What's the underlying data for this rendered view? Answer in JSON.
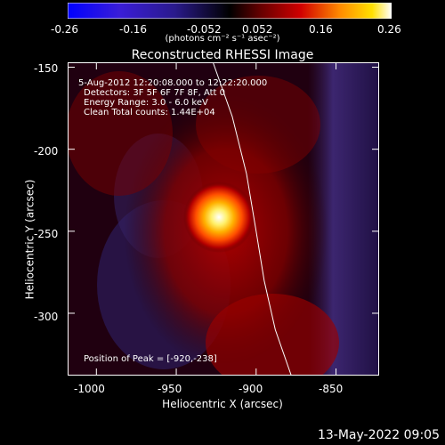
{
  "colorbar": {
    "tick_labels": [
      "-0.26",
      "-0.16",
      "-0.052",
      "0.052",
      "0.16",
      "0.26"
    ],
    "units_label": "(photons cm⁻² s⁻¹ asec⁻²)"
  },
  "plot": {
    "title": "Reconstructed RHESSI Image",
    "annotations": [
      "5-Aug-2012 12:20:08.000 to 12:22:20.000",
      "Detectors: 3F 5F 6F 7F 8F, Att 0",
      "Energy Range: 3.0 - 6.0 keV",
      "Clean     Total counts: 1.44E+04"
    ],
    "peak_label": "Position of Peak = [-920,-238]",
    "footer": "13-May-2022 09:05"
  },
  "chart_data": {
    "type": "heatmap",
    "title": "Reconstructed RHESSI Image",
    "xlabel": "Heliocentric X (arcsec)",
    "ylabel": "Heliocentric Y (arcsec)",
    "xlim": [
      -1018,
      -823
    ],
    "ylim": [
      -338,
      -147
    ],
    "x_ticks": [
      -1000,
      -950,
      -900,
      -850
    ],
    "y_ticks": [
      -300,
      -250,
      -200,
      -150
    ],
    "x_tick_labels": [
      "-1000",
      "-950",
      "-900",
      "-850"
    ],
    "y_tick_labels": [
      "-300",
      "-250",
      "-200",
      "-150"
    ],
    "colorbar_range": [
      -0.26,
      0.26
    ],
    "peak": {
      "x": -920,
      "y": -238
    },
    "limb_curve": [
      {
        "x": -927,
        "y": -147
      },
      {
        "x": -915,
        "y": -180
      },
      {
        "x": -906,
        "y": -215
      },
      {
        "x": -900,
        "y": -250
      },
      {
        "x": -895,
        "y": -280
      },
      {
        "x": -888,
        "y": -310
      },
      {
        "x": -878,
        "y": -338
      }
    ]
  }
}
